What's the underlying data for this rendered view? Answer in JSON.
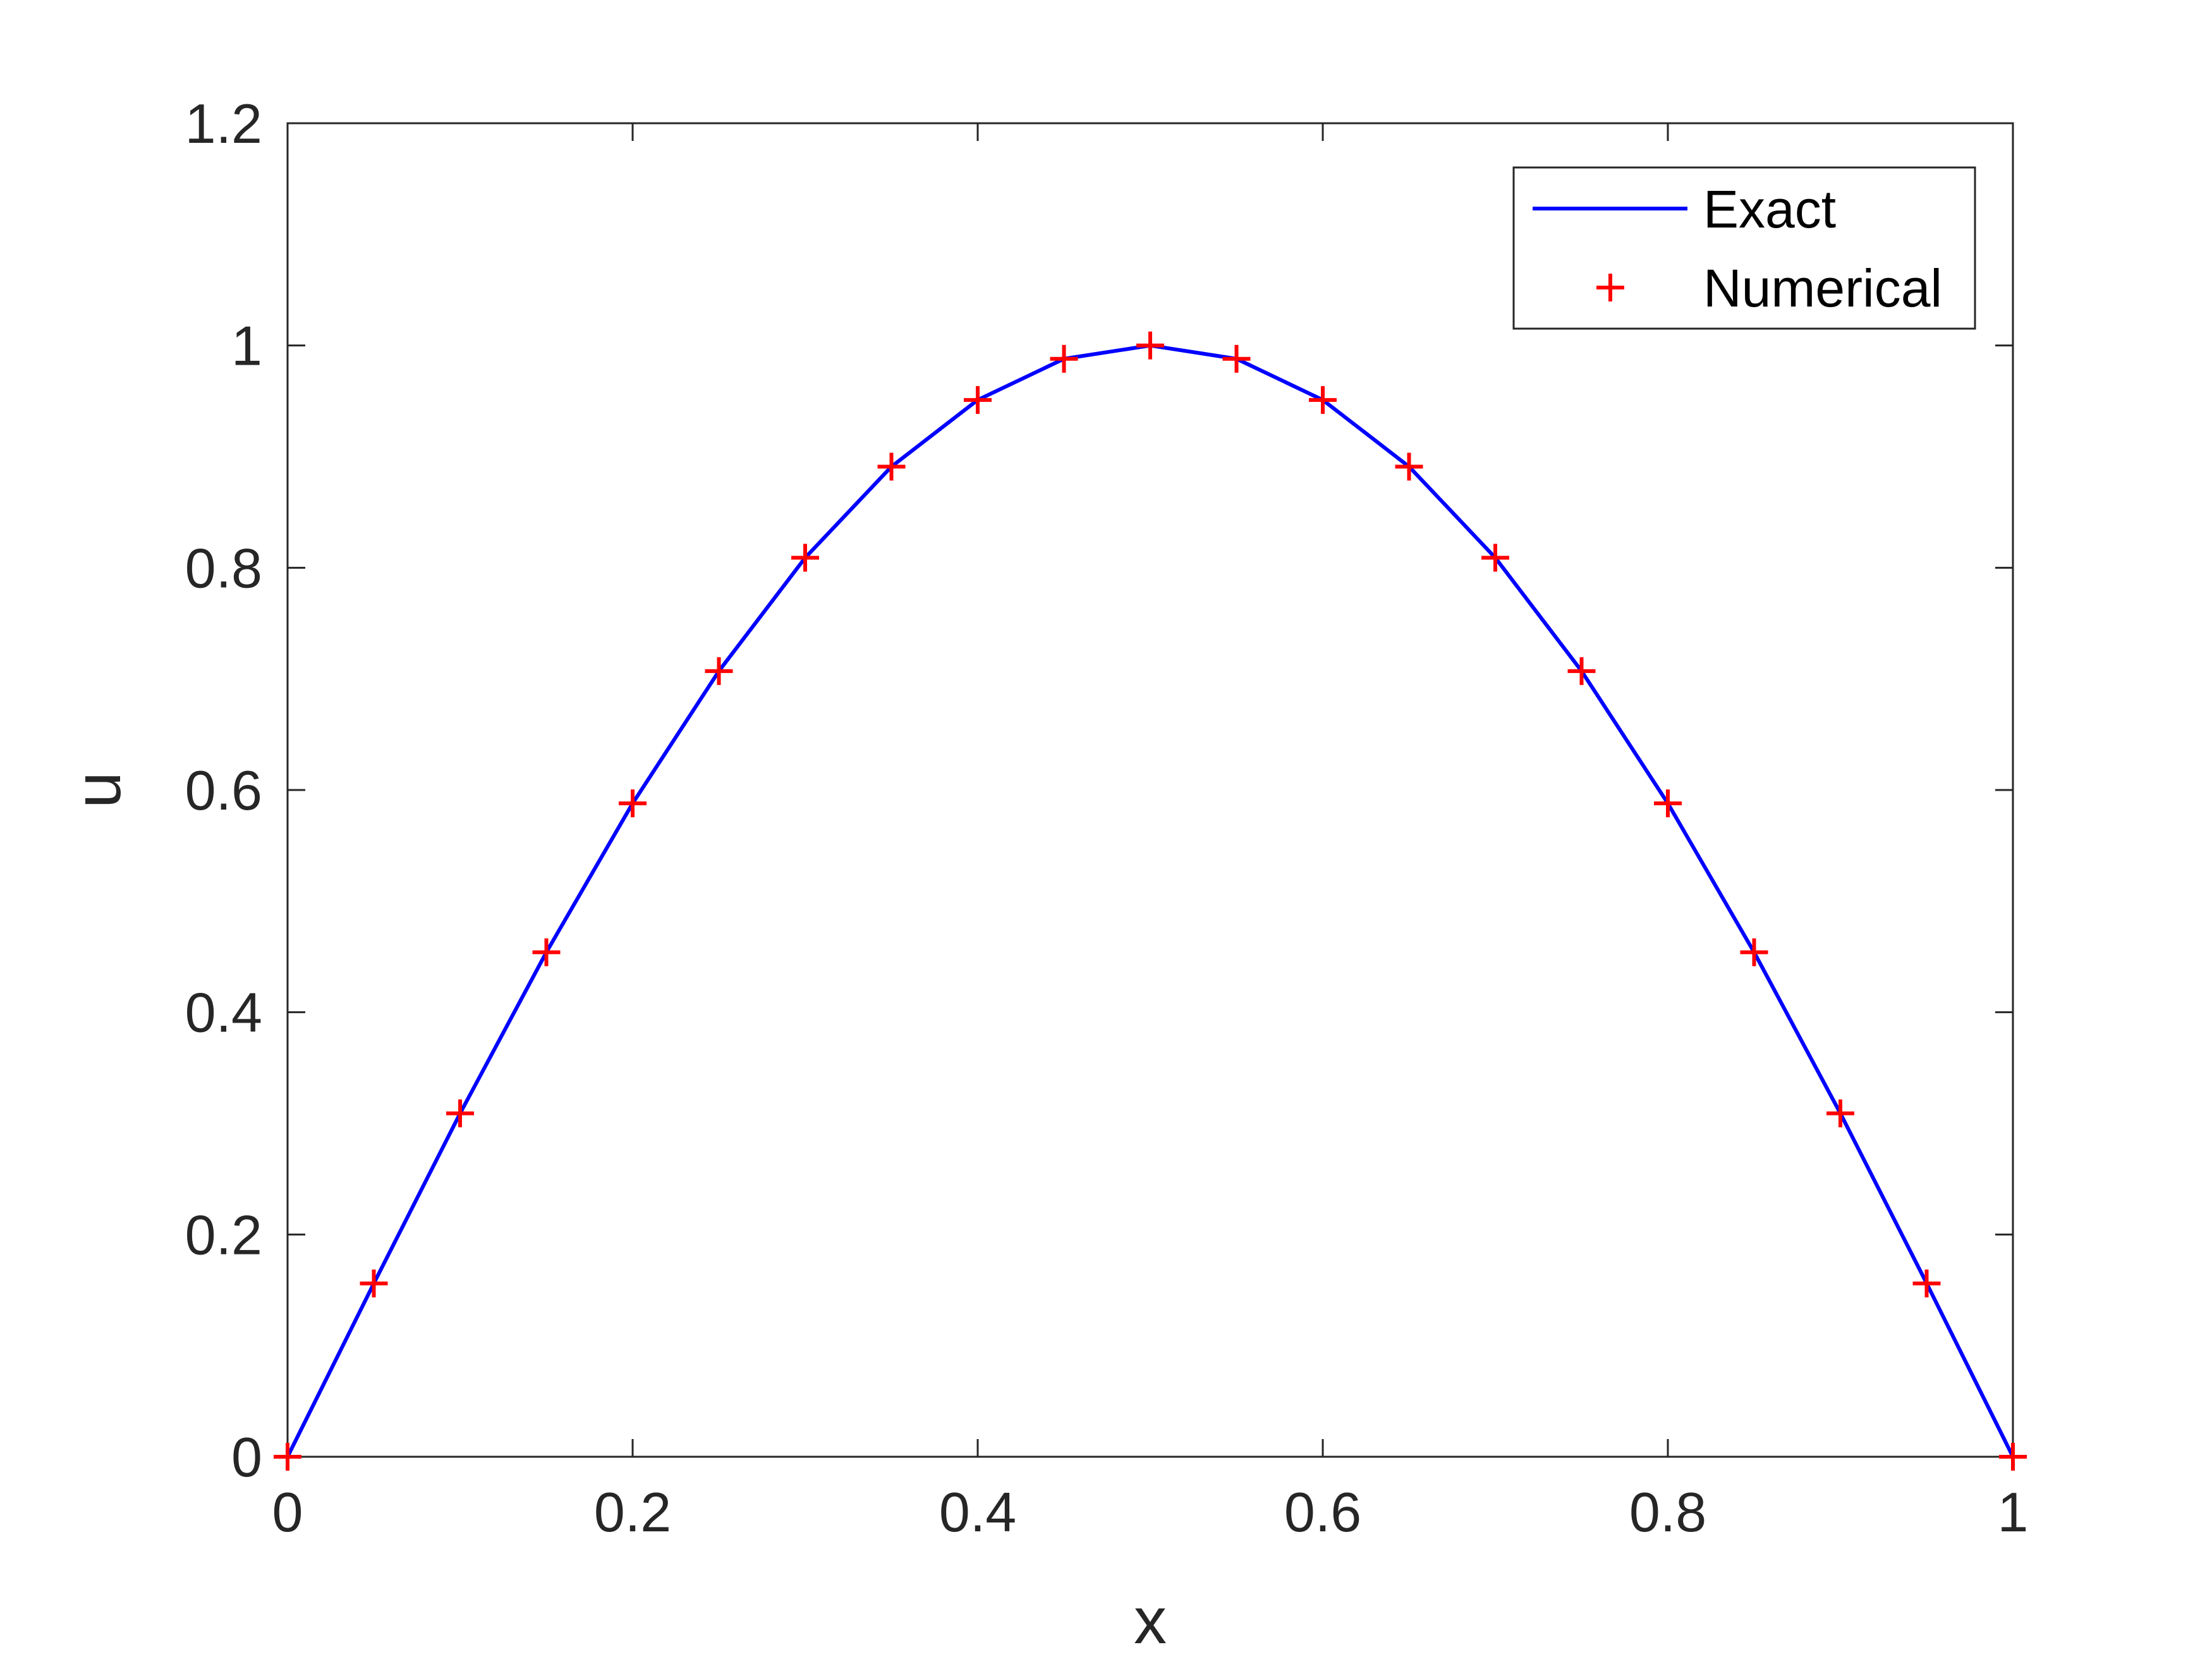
{
  "chart_data": {
    "type": "line",
    "title": "",
    "xlabel": "x",
    "ylabel": "u",
    "xlim": [
      0,
      1
    ],
    "ylim": [
      0,
      1.2
    ],
    "xticks": [
      0,
      0.2,
      0.4,
      0.6,
      0.8,
      1
    ],
    "xtick_labels": [
      "0",
      "0.2",
      "0.4",
      "0.6",
      "0.8",
      "1"
    ],
    "yticks": [
      0,
      0.2,
      0.4,
      0.6,
      0.8,
      1,
      1.2
    ],
    "ytick_labels": [
      "0",
      "0.2",
      "0.4",
      "0.6",
      "0.8",
      "1",
      "1.2"
    ],
    "grid": false,
    "legend_position": "top-right",
    "series": [
      {
        "name": "Exact",
        "style": "line",
        "color": "#0000ff",
        "x": [
          0,
          0.05,
          0.1,
          0.15,
          0.2,
          0.25,
          0.3,
          0.35,
          0.4,
          0.45,
          0.5,
          0.55,
          0.6,
          0.65,
          0.7,
          0.75,
          0.8,
          0.85,
          0.9,
          0.95,
          1
        ],
        "y": [
          0,
          0.156,
          0.309,
          0.454,
          0.588,
          0.707,
          0.809,
          0.891,
          0.951,
          0.988,
          1.0,
          0.988,
          0.951,
          0.891,
          0.809,
          0.707,
          0.588,
          0.454,
          0.309,
          0.156,
          0
        ]
      },
      {
        "name": "Numerical",
        "style": "marker-plus",
        "color": "#ff0000",
        "x": [
          0,
          0.05,
          0.1,
          0.15,
          0.2,
          0.25,
          0.3,
          0.35,
          0.4,
          0.45,
          0.5,
          0.55,
          0.6,
          0.65,
          0.7,
          0.75,
          0.8,
          0.85,
          0.9,
          0.95,
          1
        ],
        "y": [
          0,
          0.156,
          0.309,
          0.454,
          0.588,
          0.707,
          0.809,
          0.891,
          0.951,
          0.988,
          1.0,
          0.988,
          0.951,
          0.891,
          0.809,
          0.707,
          0.588,
          0.454,
          0.309,
          0.156,
          0
        ]
      }
    ]
  }
}
